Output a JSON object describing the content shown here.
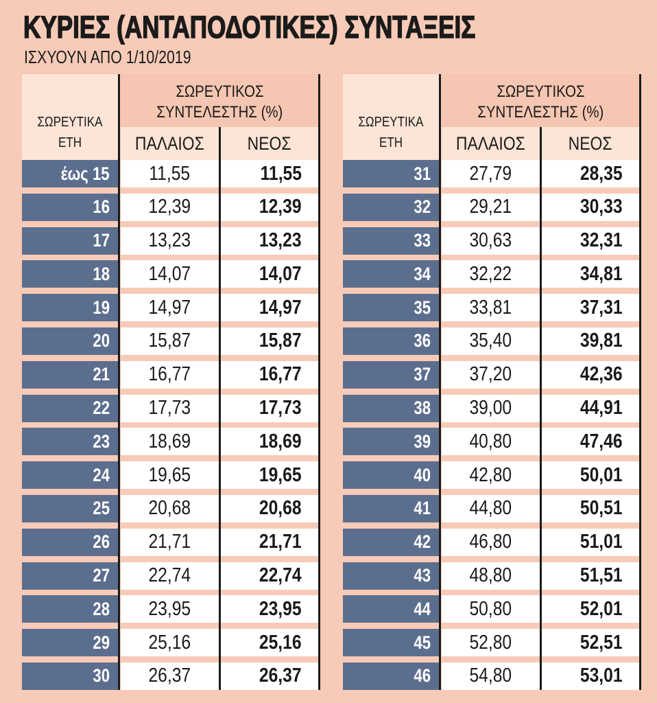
{
  "header": {
    "title": "ΚΥΡΙΕΣ (ΑΝΤΑΠΟΔΟΤΙΚΕΣ) ΣΥΝΤΑΞΕΙΣ",
    "subtitle": "ΙΣΧΥΟΥΝ ΑΠΟ 1/10/2019"
  },
  "columns": {
    "years_line1": "ΣΩΡΕΥΤΙΚΑ",
    "years_line2": "ΕΤΗ",
    "coef_line1": "ΣΩΡΕΥΤΙΚΟΣ",
    "coef_line2": "ΣΥΝΤΕΛΕΣΤΗΣ (%)",
    "old": "ΠΑΛΑΙΟΣ",
    "new": "ΝΕΟΣ"
  },
  "colors": {
    "background": "#f7cbb7",
    "header_light": "#fce4d6",
    "header_mid": "#f5c6b1",
    "row_label": "#5c6e8e",
    "cell": "#ffffff",
    "text": "#1b1b1b"
  },
  "left_table": {
    "rows": [
      {
        "years": "έως 15",
        "old": "11,55",
        "new": "11,55"
      },
      {
        "years": "16",
        "old": "12,39",
        "new": "12,39"
      },
      {
        "years": "17",
        "old": "13,23",
        "new": "13,23"
      },
      {
        "years": "18",
        "old": "14,07",
        "new": "14,07"
      },
      {
        "years": "19",
        "old": "14,97",
        "new": "14,97"
      },
      {
        "years": "20",
        "old": "15,87",
        "new": "15,87"
      },
      {
        "years": "21",
        "old": "16,77",
        "new": "16,77"
      },
      {
        "years": "22",
        "old": "17,73",
        "new": "17,73"
      },
      {
        "years": "23",
        "old": "18,69",
        "new": "18,69"
      },
      {
        "years": "24",
        "old": "19,65",
        "new": "19,65"
      },
      {
        "years": "25",
        "old": "20,68",
        "new": "20,68"
      },
      {
        "years": "26",
        "old": "21,71",
        "new": "21,71"
      },
      {
        "years": "27",
        "old": "22,74",
        "new": "22,74"
      },
      {
        "years": "28",
        "old": "23,95",
        "new": "23,95"
      },
      {
        "years": "29",
        "old": "25,16",
        "new": "25,16"
      },
      {
        "years": "30",
        "old": "26,37",
        "new": "26,37"
      }
    ]
  },
  "right_table": {
    "rows": [
      {
        "years": "31",
        "old": "27,79",
        "new": "28,35"
      },
      {
        "years": "32",
        "old": "29,21",
        "new": "30,33"
      },
      {
        "years": "33",
        "old": "30,63",
        "new": "32,31"
      },
      {
        "years": "34",
        "old": "32,22",
        "new": "34,81"
      },
      {
        "years": "35",
        "old": "33,81",
        "new": "37,31"
      },
      {
        "years": "36",
        "old": "35,40",
        "new": "39,81"
      },
      {
        "years": "37",
        "old": "37,20",
        "new": "42,36"
      },
      {
        "years": "38",
        "old": "39,00",
        "new": "44,91"
      },
      {
        "years": "39",
        "old": "40,80",
        "new": "47,46"
      },
      {
        "years": "40",
        "old": "42,80",
        "new": "50,01"
      },
      {
        "years": "41",
        "old": "44,80",
        "new": "50,51"
      },
      {
        "years": "42",
        "old": "46,80",
        "new": "51,01"
      },
      {
        "years": "43",
        "old": "48,80",
        "new": "51,51"
      },
      {
        "years": "44",
        "old": "50,80",
        "new": "52,01"
      },
      {
        "years": "45",
        "old": "52,80",
        "new": "52,51"
      },
      {
        "years": "46",
        "old": "54,80",
        "new": "53,01"
      }
    ]
  }
}
